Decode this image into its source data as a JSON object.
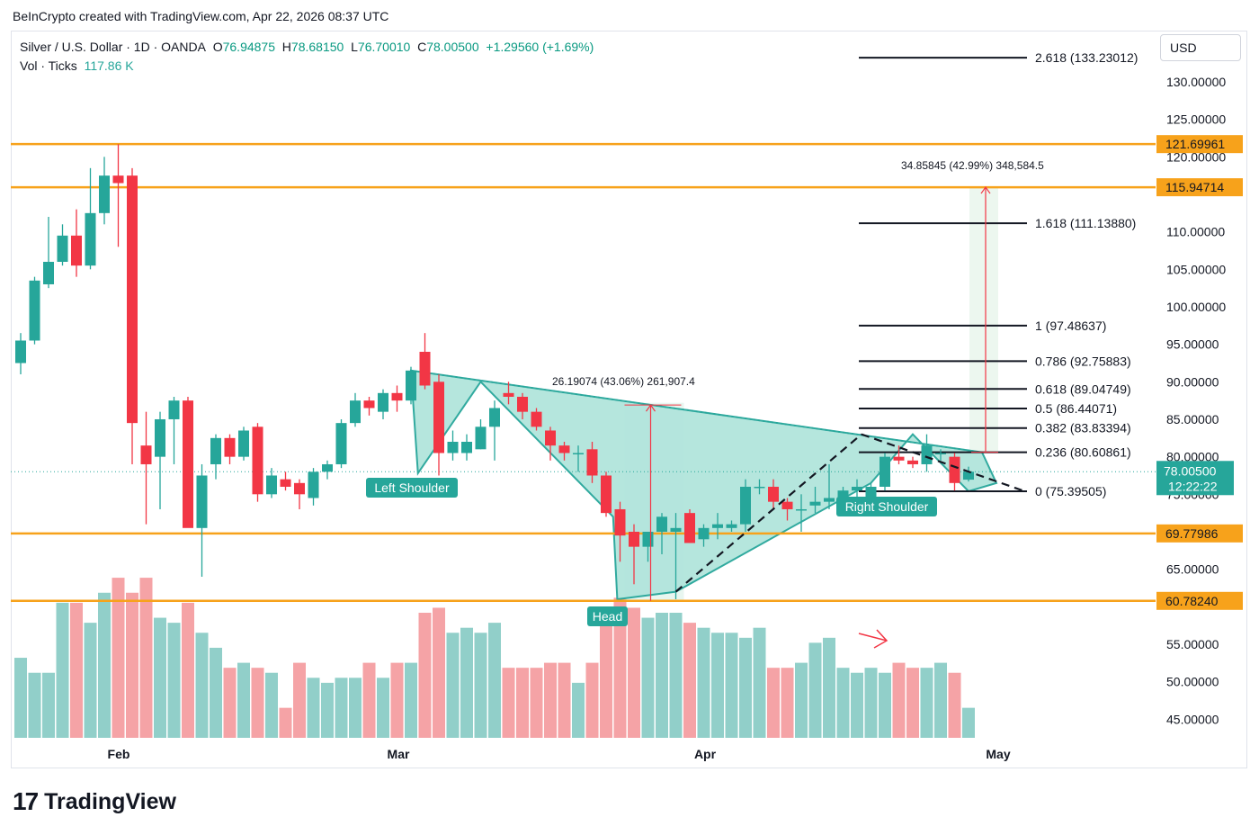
{
  "header": {
    "caption": "BeInCrypto created with TradingView.com, Apr 22, 2026 08:37 UTC"
  },
  "legend": {
    "symbol": "Silver / U.S. Dollar · 1D · OANDA",
    "open_label": "O",
    "open": "76.94875",
    "high_label": "H",
    "high": "78.68150",
    "low_label": "L",
    "low": "76.70010",
    "close_label": "C",
    "close": "78.00500",
    "change": "+1.29560 (+1.69%)",
    "vol_label": "Vol · Ticks",
    "vol_value": "117.86 K"
  },
  "currency_button": "USD",
  "footer": {
    "brand": "TradingView",
    "mark": "17"
  },
  "colors": {
    "up": "#26a69a",
    "down": "#f23645",
    "vol_up": "#91cfc9",
    "vol_down": "#f5a3a6",
    "level": "#f7a21b",
    "pattern": "#26a69a",
    "pattern_fill": "#b2e5dc"
  },
  "chart_data": {
    "type": "candlestick",
    "x_ticks": [
      "Feb",
      "Mar",
      "Apr",
      "May"
    ],
    "price_ticks": [
      "130.00000",
      "125.00000",
      "120.00000",
      "110.00000",
      "105.00000",
      "100.00000",
      "95.00000",
      "90.00000",
      "85.00000",
      "80.00000",
      "75.00000",
      "65.00000",
      "55.00000",
      "50.00000",
      "45.00000"
    ],
    "ylim": [
      43.5,
      134.5
    ],
    "candles": [
      {
        "o": 92.5,
        "h": 96.5,
        "l": 91,
        "c": 95.5
      },
      {
        "o": 95.5,
        "h": 104,
        "l": 95,
        "c": 103.5
      },
      {
        "o": 103,
        "h": 112,
        "l": 102.5,
        "c": 106
      },
      {
        "o": 106,
        "h": 111,
        "l": 105.5,
        "c": 109.5
      },
      {
        "o": 109.5,
        "h": 113,
        "l": 104,
        "c": 105.5
      },
      {
        "o": 105.5,
        "h": 118.5,
        "l": 105,
        "c": 112.5
      },
      {
        "o": 112.5,
        "h": 120,
        "l": 111,
        "c": 117.5
      },
      {
        "o": 117.5,
        "h": 121.7,
        "l": 108,
        "c": 116.5
      },
      {
        "o": 117.5,
        "h": 118.5,
        "l": 79,
        "c": 84.5
      },
      {
        "o": 81.5,
        "h": 86,
        "l": 71,
        "c": 79
      },
      {
        "o": 80,
        "h": 86,
        "l": 73,
        "c": 85
      },
      {
        "o": 85,
        "h": 88,
        "l": 79,
        "c": 87.5
      },
      {
        "o": 87.5,
        "h": 88,
        "l": 71,
        "c": 70.5
      },
      {
        "o": 70.5,
        "h": 79,
        "l": 64,
        "c": 77.5
      },
      {
        "o": 79,
        "h": 83,
        "l": 77,
        "c": 82.5
      },
      {
        "o": 82.5,
        "h": 83,
        "l": 79,
        "c": 80
      },
      {
        "o": 80,
        "h": 84,
        "l": 79.5,
        "c": 83.5
      },
      {
        "o": 84,
        "h": 84.5,
        "l": 74,
        "c": 75
      },
      {
        "o": 75,
        "h": 78.5,
        "l": 74.5,
        "c": 77.5
      },
      {
        "o": 77,
        "h": 78,
        "l": 75.5,
        "c": 76
      },
      {
        "o": 76.5,
        "h": 77,
        "l": 73,
        "c": 75
      },
      {
        "o": 74.5,
        "h": 78.5,
        "l": 73.5,
        "c": 78
      },
      {
        "o": 78,
        "h": 79.5,
        "l": 77,
        "c": 79
      },
      {
        "o": 79,
        "h": 85,
        "l": 78.5,
        "c": 84.5
      },
      {
        "o": 84.5,
        "h": 88.5,
        "l": 84,
        "c": 87.5
      },
      {
        "o": 87.5,
        "h": 88,
        "l": 85.5,
        "c": 86.5
      },
      {
        "o": 86,
        "h": 89,
        "l": 85,
        "c": 88.5
      },
      {
        "o": 88.5,
        "h": 89.5,
        "l": 86,
        "c": 87.5
      },
      {
        "o": 87.5,
        "h": 92,
        "l": 87,
        "c": 91.5
      },
      {
        "o": 94,
        "h": 96.5,
        "l": 89,
        "c": 89.5
      },
      {
        "o": 90,
        "h": 91,
        "l": 77.5,
        "c": 80.5
      },
      {
        "o": 80.5,
        "h": 83.5,
        "l": 79.5,
        "c": 82
      },
      {
        "o": 80.5,
        "h": 83,
        "l": 79.5,
        "c": 82
      },
      {
        "o": 81,
        "h": 85,
        "l": 81,
        "c": 84
      },
      {
        "o": 84,
        "h": 87.5,
        "l": 79.5,
        "c": 86.5
      },
      {
        "o": 88.5,
        "h": 90,
        "l": 87,
        "c": 88
      },
      {
        "o": 88,
        "h": 88.5,
        "l": 85,
        "c": 86
      },
      {
        "o": 86,
        "h": 86.5,
        "l": 83.5,
        "c": 84
      },
      {
        "o": 83.5,
        "h": 84,
        "l": 79.5,
        "c": 81.5
      },
      {
        "o": 81.5,
        "h": 82,
        "l": 79.5,
        "c": 80.5
      },
      {
        "o": 80.5,
        "h": 81.5,
        "l": 78,
        "c": 80.5
      },
      {
        "o": 81,
        "h": 82,
        "l": 76.5,
        "c": 77.5
      },
      {
        "o": 77.5,
        "h": 78,
        "l": 72,
        "c": 72.5
      },
      {
        "o": 73,
        "h": 74,
        "l": 66,
        "c": 69.5
      },
      {
        "o": 70,
        "h": 71,
        "l": 63,
        "c": 68
      },
      {
        "o": 68,
        "h": 70,
        "l": 66,
        "c": 70
      },
      {
        "o": 70,
        "h": 72.5,
        "l": 67,
        "c": 72
      },
      {
        "o": 70,
        "h": 72.5,
        "l": 61,
        "c": 70.5
      },
      {
        "o": 72.5,
        "h": 73,
        "l": 68.5,
        "c": 68.5
      },
      {
        "o": 69,
        "h": 71,
        "l": 68,
        "c": 70.5
      },
      {
        "o": 70.5,
        "h": 72.5,
        "l": 69,
        "c": 71
      },
      {
        "o": 70.5,
        "h": 71.5,
        "l": 70,
        "c": 71
      },
      {
        "o": 71,
        "h": 77,
        "l": 70,
        "c": 76
      },
      {
        "o": 76,
        "h": 77,
        "l": 75,
        "c": 76
      },
      {
        "o": 76,
        "h": 77,
        "l": 73,
        "c": 74
      },
      {
        "o": 74,
        "h": 74.5,
        "l": 71.5,
        "c": 73
      },
      {
        "o": 73,
        "h": 75,
        "l": 70,
        "c": 73
      },
      {
        "o": 73.5,
        "h": 76,
        "l": 72.5,
        "c": 74
      },
      {
        "o": 74,
        "h": 79,
        "l": 73,
        "c": 74.5
      },
      {
        "o": 74.5,
        "h": 76,
        "l": 74,
        "c": 75.5
      },
      {
        "o": 75.5,
        "h": 77,
        "l": 74.5,
        "c": 76
      },
      {
        "o": 74,
        "h": 76.5,
        "l": 72.5,
        "c": 76
      },
      {
        "o": 76,
        "h": 80.5,
        "l": 75.5,
        "c": 80
      },
      {
        "o": 80,
        "h": 81.5,
        "l": 79,
        "c": 79.5
      },
      {
        "o": 79.5,
        "h": 80,
        "l": 78.5,
        "c": 79
      },
      {
        "o": 79,
        "h": 83,
        "l": 78,
        "c": 81.5
      },
      {
        "o": 80.5,
        "h": 81,
        "l": 79.5,
        "c": 80.5
      },
      {
        "o": 80,
        "h": 80.5,
        "l": 75.5,
        "c": 76.5
      },
      {
        "o": 76.95,
        "h": 78.68,
        "l": 76.7,
        "c": 78.005
      }
    ],
    "volume": [
      56,
      53,
      53,
      67,
      67,
      63,
      69,
      72,
      69,
      72,
      64,
      63,
      67,
      61,
      58,
      54,
      55,
      54,
      53,
      46,
      55,
      52,
      51,
      52,
      52,
      55,
      52,
      55,
      55,
      65,
      66,
      61,
      62,
      61,
      63,
      54,
      54,
      54,
      55,
      55,
      51,
      55,
      66,
      68,
      66,
      64,
      65,
      65,
      63,
      62,
      61,
      61,
      60,
      62,
      54,
      54,
      55,
      59,
      60,
      54,
      53,
      54,
      53,
      55,
      54,
      54,
      55,
      53,
      46
    ],
    "levels": [
      {
        "value": 121.69961,
        "label": "121.69961"
      },
      {
        "value": 115.94714,
        "label": "115.94714"
      },
      {
        "value": 69.77986,
        "label": "69.77986"
      },
      {
        "value": 60.7824,
        "label": "60.78240"
      }
    ],
    "fib_levels": [
      {
        "label": "2.618 (133.23012)",
        "value": 133.23012
      },
      {
        "label": "1.618 (111.13880)",
        "value": 111.1388
      },
      {
        "label": "1 (97.48637)",
        "value": 97.48637
      },
      {
        "label": "0.786 (92.75883)",
        "value": 92.75883
      },
      {
        "label": "0.618 (89.04749)",
        "value": 89.04749
      },
      {
        "label": "0.5 (86.44071)",
        "value": 86.44071
      },
      {
        "label": "0.382 (83.83394)",
        "value": 83.83394
      },
      {
        "label": "0.236 (80.60861)",
        "value": 80.60861
      },
      {
        "label": "0 (75.39505)",
        "value": 75.39505
      }
    ],
    "current_price": {
      "value": 78.005,
      "label": "78.00500",
      "countdown": "12:22:22"
    },
    "annotations": {
      "left_shoulder": "Left Shoulder",
      "head": "Head",
      "right_shoulder": "Right Shoulder",
      "measure_1": "26.19074 (43.06%) 261,907.4",
      "measure_2": "34.85845 (42.99%) 348,584.5"
    }
  }
}
